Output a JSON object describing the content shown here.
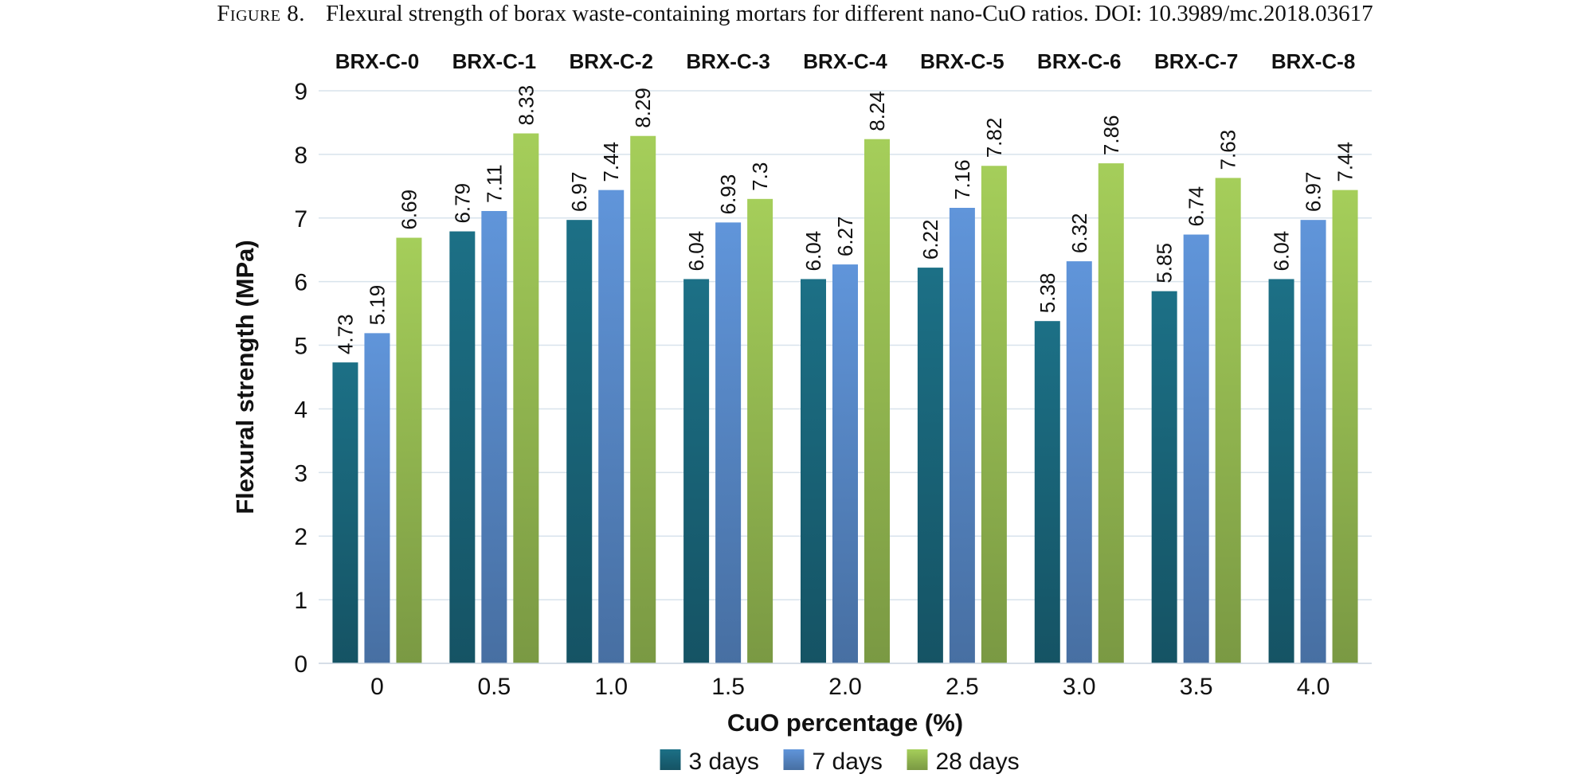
{
  "figure": {
    "label": "Figure 8.",
    "caption": "Flexural strength of borax waste-containing mortars for different nano-CuO ratios. DOI: 10.3989/mc.2018.03617"
  },
  "chart_data": {
    "type": "bar",
    "title": "",
    "xlabel": "CuO percentage (%)",
    "ylabel": "Flexural strength (MPa)",
    "ylim": [
      0,
      9
    ],
    "yticks": [
      0,
      1,
      2,
      3,
      4,
      5,
      6,
      7,
      8,
      9
    ],
    "grid": true,
    "legend_position": "bottom",
    "categories": [
      "0",
      "0.5",
      "1.0",
      "1.5",
      "2.0",
      "2.5",
      "3.0",
      "3.5",
      "4.0"
    ],
    "group_labels": [
      "BRX-C-0",
      "BRX-C-1",
      "BRX-C-2",
      "BRX-C-3",
      "BRX-C-4",
      "BRX-C-5",
      "BRX-C-6",
      "BRX-C-7",
      "BRX-C-8"
    ],
    "series": [
      {
        "name": "3 days",
        "color": "#1b6b80",
        "values": [
          4.73,
          6.79,
          6.97,
          6.04,
          6.04,
          6.22,
          5.38,
          5.85,
          6.04
        ],
        "labels": [
          "4.73",
          "6.79",
          "6.97",
          "6.04",
          "6.04",
          "6.22",
          "5.38",
          "5.85",
          "6.04"
        ]
      },
      {
        "name": "7 days",
        "color": "#5b8ed0",
        "values": [
          5.19,
          7.11,
          7.44,
          6.93,
          6.27,
          7.16,
          6.32,
          6.74,
          6.97
        ],
        "labels": [
          "5.19",
          "7.11",
          "7.44",
          "6.93",
          "6.27",
          "7.16",
          "6.32",
          "6.74",
          "6.97"
        ]
      },
      {
        "name": "28 days",
        "color": "#9dc456",
        "values": [
          6.69,
          8.33,
          8.29,
          7.3,
          8.24,
          7.82,
          7.86,
          7.63,
          7.44
        ],
        "labels": [
          "6.69",
          "8.33",
          "8.29",
          "7.3",
          "8.24",
          "7.82",
          "7.86",
          "7.63",
          "7.44"
        ]
      }
    ]
  }
}
